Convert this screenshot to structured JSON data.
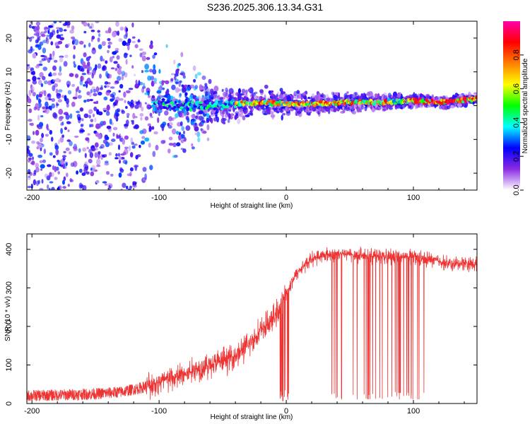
{
  "title": "S236.2025.306.13.34.G31",
  "chart_data": [
    {
      "type": "heatmap",
      "xlabel": "Height of straight line (km)",
      "ylabel": "Frequency (Hz)",
      "xlim": [
        -204,
        150
      ],
      "ylim": [
        -25,
        25
      ],
      "xticks": [
        -200,
        -100,
        0,
        100
      ],
      "yticks": [
        -20,
        -10,
        0,
        10,
        20
      ],
      "colorbar": {
        "label": "Normalized spectral amplitude",
        "range": [
          0,
          1
        ],
        "ticks": [
          "0.0",
          "0.2",
          "0.4",
          "0.6",
          "0.8"
        ],
        "colors": [
          "#ffffff",
          "#8a2be2",
          "#0000ff",
          "#00ffff",
          "#00ff00",
          "#ffff00",
          "#ff8000",
          "#ff0000",
          "#ff00aa"
        ]
      },
      "ridge": {
        "description_points_x": [
          -100,
          -60,
          -40,
          -20,
          0,
          20,
          50,
          80,
          100,
          120,
          150
        ],
        "frequency_hz": [
          0,
          0,
          0.5,
          1,
          0.5,
          0.5,
          1,
          1,
          1.5,
          1,
          2
        ]
      }
    },
    {
      "type": "line",
      "xlabel": "Height of straight line (km)",
      "ylabel": "SNR (10 * v/v)",
      "xlim": [
        -204,
        150
      ],
      "ylim": [
        0,
        440
      ],
      "xticks": [
        -200,
        -100,
        0,
        100
      ],
      "yticks": [
        0,
        100,
        200,
        300,
        400
      ],
      "series": [
        {
          "name": "SNR",
          "color": "#ee3333",
          "x": [
            -204,
            -180,
            -150,
            -130,
            -115,
            -100,
            -90,
            -80,
            -70,
            -60,
            -50,
            -40,
            -30,
            -20,
            -10,
            -5,
            0,
            5,
            10,
            15,
            20,
            30,
            40,
            60,
            80,
            100,
            110,
            120,
            130,
            140,
            150
          ],
          "y": [
            20,
            22,
            25,
            30,
            40,
            55,
            65,
            75,
            90,
            100,
            110,
            125,
            150,
            190,
            220,
            250,
            290,
            320,
            345,
            360,
            375,
            385,
            388,
            385,
            380,
            380,
            375,
            370,
            360,
            365,
            360
          ]
        }
      ]
    }
  ]
}
